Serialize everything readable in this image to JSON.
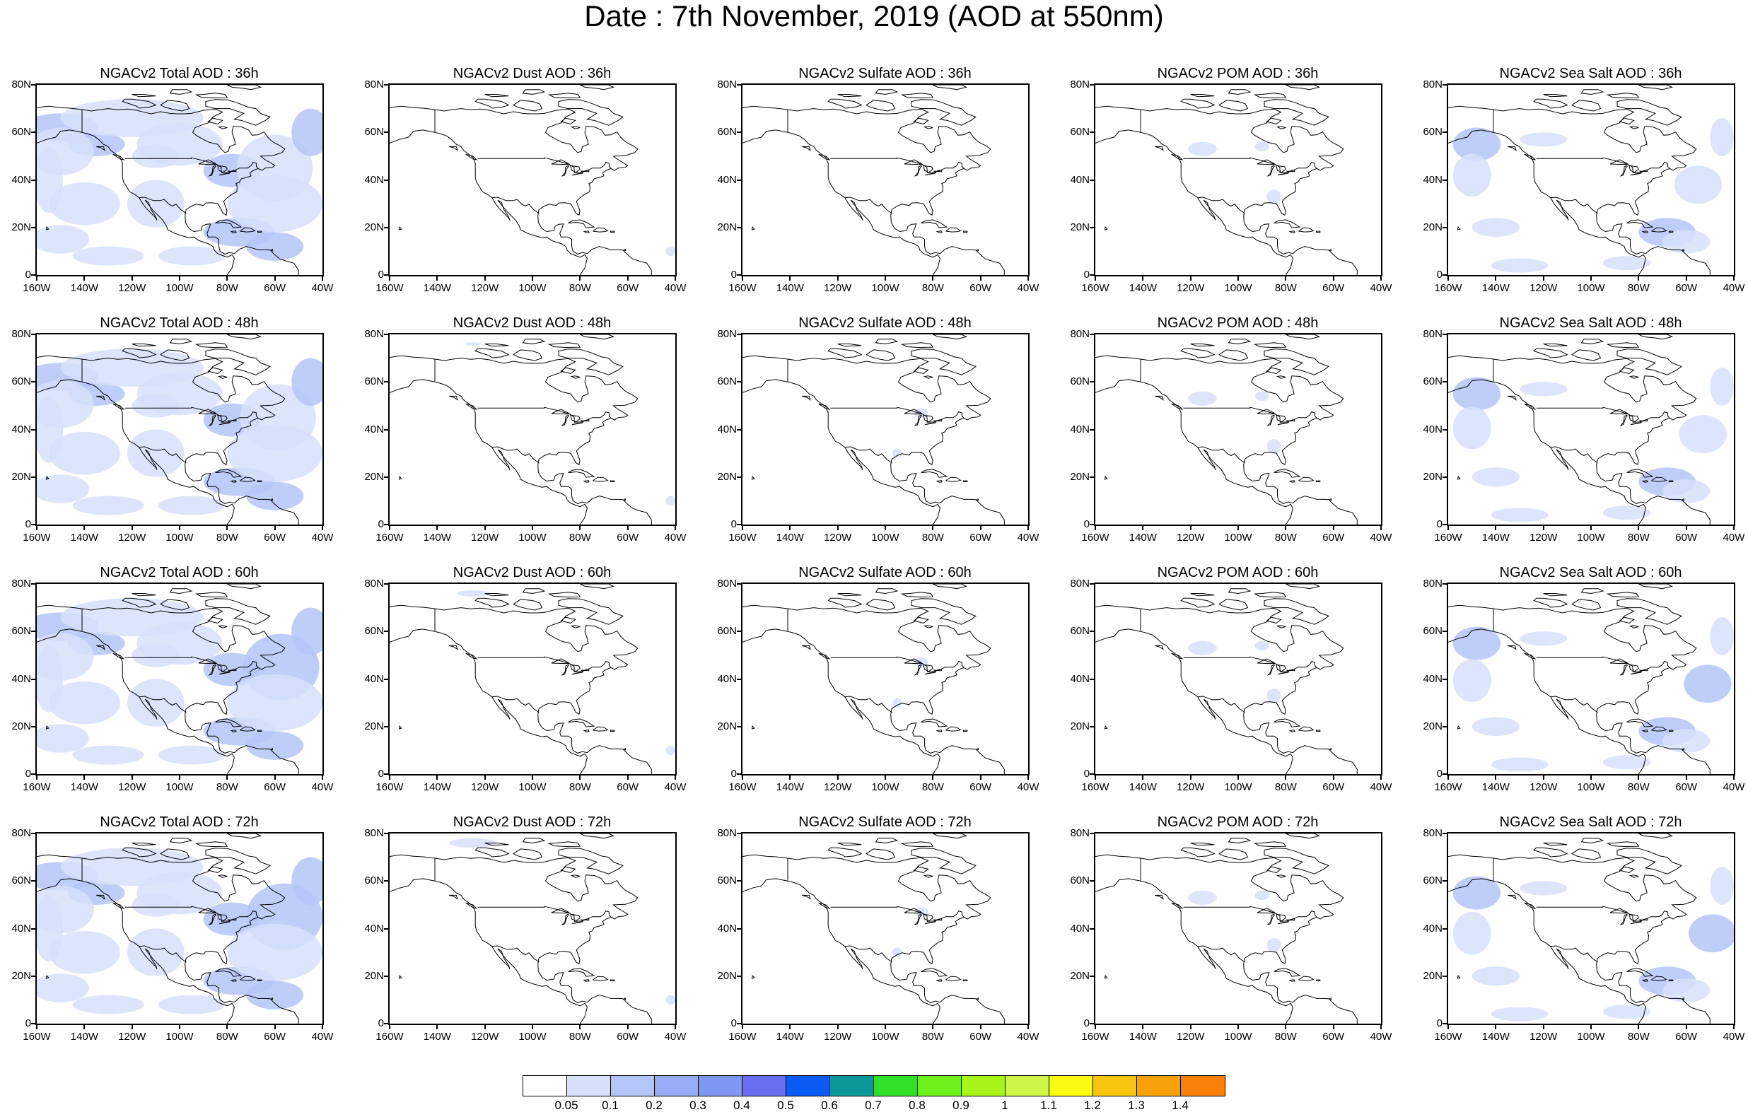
{
  "title": "Date : 7th November, 2019 (AOD at 550nm)",
  "lat_ticks": [
    "80N",
    "60N",
    "40N",
    "20N",
    "0"
  ],
  "lon_ticks": [
    "160W",
    "140W",
    "120W",
    "100W",
    "80W",
    "60W",
    "40W"
  ],
  "panels": [
    {
      "title": "NGACv2 Total AOD : 36h",
      "variable": "total",
      "hour": 36
    },
    {
      "title": "NGACv2 Dust AOD : 36h",
      "variable": "dust",
      "hour": 36
    },
    {
      "title": "NGACv2 Sulfate AOD : 36h",
      "variable": "sulfate",
      "hour": 36
    },
    {
      "title": "NGACv2 POM AOD : 36h",
      "variable": "pom",
      "hour": 36
    },
    {
      "title": "NGACv2 Sea Salt AOD : 36h",
      "variable": "seasalt",
      "hour": 36
    },
    {
      "title": "NGACv2 Total AOD : 48h",
      "variable": "total",
      "hour": 48
    },
    {
      "title": "NGACv2 Dust AOD : 48h",
      "variable": "dust",
      "hour": 48
    },
    {
      "title": "NGACv2 Sulfate AOD : 48h",
      "variable": "sulfate",
      "hour": 48
    },
    {
      "title": "NGACv2 POM AOD : 48h",
      "variable": "pom",
      "hour": 48
    },
    {
      "title": "NGACv2 Sea Salt AOD : 48h",
      "variable": "seasalt",
      "hour": 48
    },
    {
      "title": "NGACv2 Total AOD : 60h",
      "variable": "total",
      "hour": 60
    },
    {
      "title": "NGACv2 Dust AOD : 60h",
      "variable": "dust",
      "hour": 60
    },
    {
      "title": "NGACv2 Sulfate AOD : 60h",
      "variable": "sulfate",
      "hour": 60
    },
    {
      "title": "NGACv2 POM AOD : 60h",
      "variable": "pom",
      "hour": 60
    },
    {
      "title": "NGACv2 Sea Salt AOD : 60h",
      "variable": "seasalt",
      "hour": 60
    },
    {
      "title": "NGACv2 Total AOD : 72h",
      "variable": "total",
      "hour": 72
    },
    {
      "title": "NGACv2 Dust AOD : 72h",
      "variable": "dust",
      "hour": 72
    },
    {
      "title": "NGACv2 Sulfate AOD : 72h",
      "variable": "sulfate",
      "hour": 72
    },
    {
      "title": "NGACv2 POM AOD : 72h",
      "variable": "pom",
      "hour": 72
    },
    {
      "title": "NGACv2 Sea Salt  AOD : 72h",
      "variable": "seasalt",
      "hour": 72
    }
  ],
  "colorbar": {
    "colors": [
      "#ffffff",
      "#d6e0fb",
      "#b4c6f8",
      "#96acf6",
      "#8096f3",
      "#6a6ff0",
      "#0a5cf5",
      "#0c9898",
      "#30e028",
      "#6ef01c",
      "#a8f41a",
      "#cdf54a",
      "#f9f912",
      "#f9c40d",
      "#f9a10a",
      "#f97f08",
      "#f94020"
    ],
    "labels": [
      "0.05",
      "0.1",
      "0.2",
      "0.3",
      "0.4",
      "0.5",
      "0.6",
      "0.7",
      "0.8",
      "0.9",
      "1",
      "1.1",
      "1.2",
      "1.3",
      "1.4"
    ]
  }
}
